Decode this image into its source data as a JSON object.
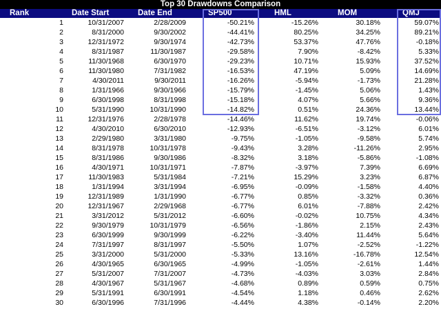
{
  "title": "Top 30 Drawdowns Comparison",
  "columns": [
    "Rank",
    "Date Start",
    "Date End",
    "SP500",
    "HML",
    "MOM",
    "QMJ"
  ],
  "colors": {
    "header_bg": "#0c0c80",
    "title_bg": "#000000",
    "highlight": "#6a6ee0"
  },
  "rows": [
    [
      "1",
      "10/31/2007",
      "2/28/2009",
      "-50.21%",
      "-15.26%",
      "30.18%",
      "59.07%"
    ],
    [
      "2",
      "8/31/2000",
      "9/30/2002",
      "-44.41%",
      "80.25%",
      "34.25%",
      "89.21%"
    ],
    [
      "3",
      "12/31/1972",
      "9/30/1974",
      "-42.73%",
      "53.37%",
      "47.76%",
      "-0.18%"
    ],
    [
      "4",
      "8/31/1987",
      "11/30/1987",
      "-29.58%",
      "7.90%",
      "-8.42%",
      "5.33%"
    ],
    [
      "5",
      "11/30/1968",
      "6/30/1970",
      "-29.23%",
      "10.71%",
      "15.93%",
      "37.52%"
    ],
    [
      "6",
      "11/30/1980",
      "7/31/1982",
      "-16.53%",
      "47.19%",
      "5.09%",
      "14.69%"
    ],
    [
      "7",
      "4/30/2011",
      "9/30/2011",
      "-16.26%",
      "-5.94%",
      "-1.73%",
      "21.28%"
    ],
    [
      "8",
      "1/31/1966",
      "9/30/1966",
      "-15.79%",
      "-1.45%",
      "5.06%",
      "1.43%"
    ],
    [
      "9",
      "6/30/1998",
      "8/31/1998",
      "-15.18%",
      "4.07%",
      "5.66%",
      "9.36%"
    ],
    [
      "10",
      "5/31/1990",
      "10/31/1990",
      "-14.82%",
      "0.51%",
      "24.36%",
      "13.44%"
    ],
    [
      "11",
      "12/31/1976",
      "2/28/1978",
      "-14.46%",
      "11.62%",
      "19.74%",
      "-0.06%"
    ],
    [
      "12",
      "4/30/2010",
      "6/30/2010",
      "-12.93%",
      "-6.51%",
      "-3.12%",
      "6.01%"
    ],
    [
      "13",
      "2/29/1980",
      "3/31/1980",
      "-9.75%",
      "-1.05%",
      "-9.58%",
      "5.74%"
    ],
    [
      "14",
      "8/31/1978",
      "10/31/1978",
      "-9.43%",
      "3.28%",
      "-11.26%",
      "2.95%"
    ],
    [
      "15",
      "8/31/1986",
      "9/30/1986",
      "-8.32%",
      "3.18%",
      "-5.86%",
      "-1.08%"
    ],
    [
      "16",
      "4/30/1971",
      "10/31/1971",
      "-7.87%",
      "-3.97%",
      "7.39%",
      "6.69%"
    ],
    [
      "17",
      "11/30/1983",
      "5/31/1984",
      "-7.21%",
      "15.29%",
      "3.23%",
      "6.87%"
    ],
    [
      "18",
      "1/31/1994",
      "3/31/1994",
      "-6.95%",
      "-0.09%",
      "-1.58%",
      "4.40%"
    ],
    [
      "19",
      "12/31/1989",
      "1/31/1990",
      "-6.77%",
      "0.85%",
      "-3.32%",
      "0.36%"
    ],
    [
      "20",
      "12/31/1967",
      "2/29/1968",
      "-6.77%",
      "6.01%",
      "-7.88%",
      "2.42%"
    ],
    [
      "21",
      "3/31/2012",
      "5/31/2012",
      "-6.60%",
      "-0.02%",
      "10.75%",
      "4.34%"
    ],
    [
      "22",
      "9/30/1979",
      "10/31/1979",
      "-6.56%",
      "-1.86%",
      "2.15%",
      "2.43%"
    ],
    [
      "23",
      "6/30/1999",
      "9/30/1999",
      "-6.22%",
      "-3.40%",
      "11.44%",
      "5.64%"
    ],
    [
      "24",
      "7/31/1997",
      "8/31/1997",
      "-5.50%",
      "1.07%",
      "-2.52%",
      "-1.22%"
    ],
    [
      "25",
      "3/31/2000",
      "5/31/2000",
      "-5.33%",
      "13.16%",
      "-16.78%",
      "12.54%"
    ],
    [
      "26",
      "4/30/1965",
      "6/30/1965",
      "-4.99%",
      "-1.05%",
      "-2.61%",
      "1.44%"
    ],
    [
      "27",
      "5/31/2007",
      "7/31/2007",
      "-4.73%",
      "-4.03%",
      "3.03%",
      "2.84%"
    ],
    [
      "28",
      "4/30/1967",
      "5/31/1967",
      "-4.68%",
      "0.89%",
      "0.59%",
      "0.75%"
    ],
    [
      "29",
      "5/31/1991",
      "6/30/1991",
      "-4.54%",
      "1.18%",
      "0.46%",
      "2.62%"
    ],
    [
      "30",
      "6/30/1996",
      "7/31/1996",
      "-4.44%",
      "4.38%",
      "-0.14%",
      "2.20%"
    ]
  ]
}
